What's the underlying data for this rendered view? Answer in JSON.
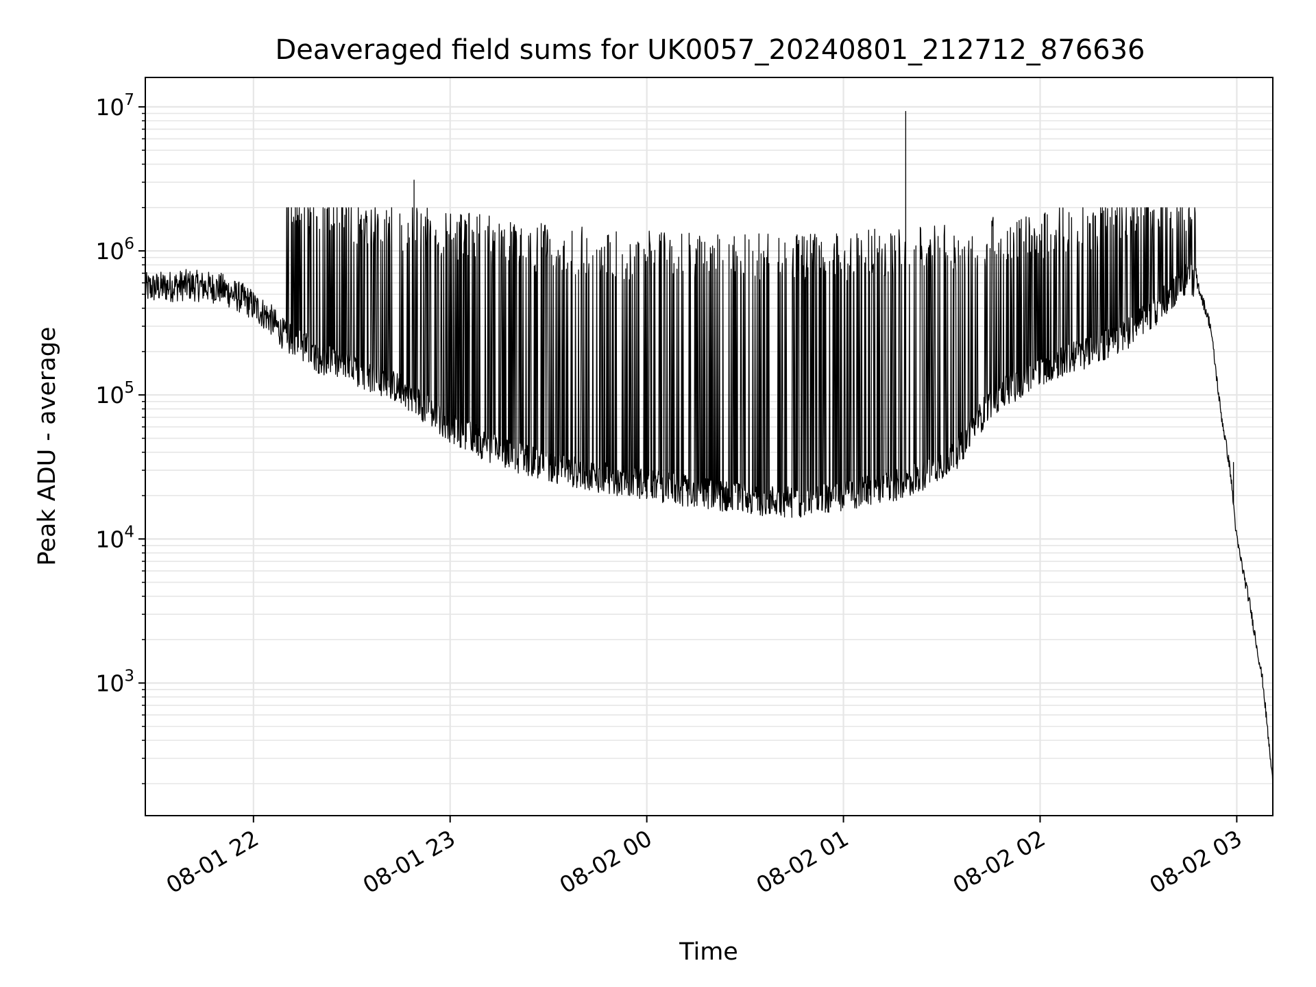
{
  "chart_data": {
    "type": "line",
    "title": "Deaveraged field sums for UK0057_20240801_212712_876636",
    "xlabel": "Time",
    "ylabel": "Peak ADU - average",
    "yscale": "log",
    "grid": true,
    "line_color": "#000000",
    "grid_color": "#e6e6e6",
    "xlim": [
      "2024-08-01 21:27",
      "2024-08-02 03:11"
    ],
    "ylim": [
      120,
      16000000
    ],
    "x_ticks": [
      {
        "value": "2024-08-01 22:00",
        "label": "08-01 22"
      },
      {
        "value": "2024-08-01 23:00",
        "label": "08-01 23"
      },
      {
        "value": "2024-08-02 00:00",
        "label": "08-02 00"
      },
      {
        "value": "2024-08-02 01:00",
        "label": "08-02 01"
      },
      {
        "value": "2024-08-02 02:00",
        "label": "08-02 02"
      },
      {
        "value": "2024-08-02 03:00",
        "label": "08-02 03"
      }
    ],
    "y_ticks": [
      {
        "value": 1000,
        "base": "10",
        "exp": "3"
      },
      {
        "value": 10000,
        "base": "10",
        "exp": "4"
      },
      {
        "value": 100000,
        "base": "10",
        "exp": "5"
      },
      {
        "value": 1000000,
        "base": "10",
        "exp": "6"
      },
      {
        "value": 10000000,
        "base": "10",
        "exp": "7"
      }
    ],
    "series": [
      {
        "baseline": {
          "x": [
            "2024-08-01 21:27",
            "2024-08-01 21:40",
            "2024-08-01 21:50",
            "2024-08-01 21:58",
            "2024-08-01 22:05",
            "2024-08-01 22:10",
            "2024-08-01 22:15",
            "2024-08-01 22:20",
            "2024-08-01 22:30",
            "2024-08-01 22:45",
            "2024-08-01 23:00",
            "2024-08-01 23:15",
            "2024-08-01 23:30",
            "2024-08-01 23:45",
            "2024-08-02 00:00",
            "2024-08-02 00:15",
            "2024-08-02 00:30",
            "2024-08-02 00:45",
            "2024-08-02 01:00",
            "2024-08-02 01:15",
            "2024-08-02 01:25",
            "2024-08-02 01:35",
            "2024-08-02 01:45",
            "2024-08-02 02:00",
            "2024-08-02 02:15",
            "2024-08-02 02:25",
            "2024-08-02 02:35",
            "2024-08-02 02:42",
            "2024-08-02 02:45",
            "2024-08-02 02:48",
            "2024-08-02 02:52",
            "2024-08-02 02:55",
            "2024-08-02 02:58",
            "2024-08-02 03:00",
            "2024-08-02 03:04",
            "2024-08-02 03:08",
            "2024-08-02 03:11"
          ],
          "y": [
            550000,
            580000,
            550000,
            450000,
            340000,
            250000,
            220000,
            180000,
            150000,
            110000,
            60000,
            40000,
            32000,
            27000,
            24000,
            21000,
            19000,
            18000,
            20000,
            23000,
            28000,
            40000,
            90000,
            150000,
            200000,
            250000,
            380000,
            560000,
            650000,
            600000,
            300000,
            80000,
            30000,
            10000,
            3500,
            1000,
            200
          ]
        },
        "spikes": [
          {
            "x": "2024-08-01 22:49",
            "y": 3100000
          },
          {
            "x": "2024-08-02 01:19",
            "y": 9300000
          },
          {
            "x": "2024-08-02 02:59",
            "y": 34000
          }
        ]
      }
    ]
  }
}
